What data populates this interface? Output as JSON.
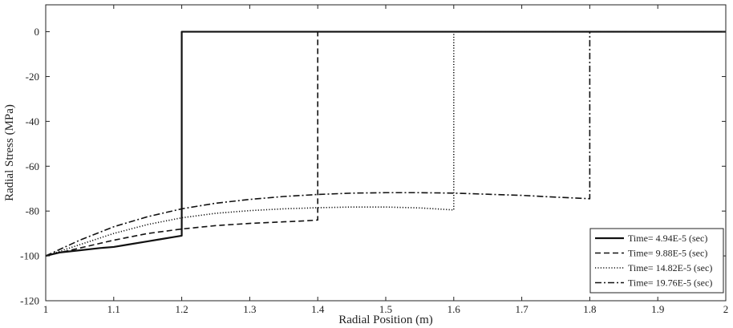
{
  "chart_data": {
    "type": "line",
    "title": "",
    "xlabel": "Radial Position (m)",
    "ylabel": "Radial Stress (MPa)",
    "xlim": [
      1,
      2
    ],
    "ylim": [
      -120,
      12
    ],
    "xticks": [
      1,
      1.1,
      1.2,
      1.3,
      1.4,
      1.5,
      1.6,
      1.7,
      1.8,
      1.9,
      2
    ],
    "xtick_labels": [
      "1",
      "1.1",
      "1.2",
      "1.3",
      "1.4",
      "1.5",
      "1.6",
      "1.7",
      "1.8",
      "1.9",
      "2"
    ],
    "yticks": [
      0,
      -20,
      -40,
      -60,
      -80,
      -100,
      -120
    ],
    "ytick_labels": [
      "0",
      "-20",
      "-40",
      "-60",
      "-80",
      "-100",
      "-120"
    ],
    "grid": false,
    "legend_position": "bottom-right",
    "series": [
      {
        "name": "Time= 4.94E-5 (sec)",
        "line_style": "solid",
        "x": [
          1.0,
          1.02,
          1.05,
          1.08,
          1.1,
          1.12,
          1.15,
          1.17,
          1.19,
          1.2,
          1.2,
          1.21,
          1.3,
          1.4,
          1.5,
          1.6,
          1.7,
          1.8,
          1.9,
          2.0
        ],
        "y": [
          -100,
          -98.5,
          -97.5,
          -96.5,
          -96,
          -95,
          -93.5,
          -92.5,
          -91.5,
          -91,
          0,
          0,
          0,
          0,
          0,
          0,
          0,
          0,
          0,
          0
        ]
      },
      {
        "name": "Time= 9.88E-5 (sec)",
        "line_style": "dashed",
        "x": [
          1.0,
          1.05,
          1.1,
          1.15,
          1.2,
          1.25,
          1.3,
          1.35,
          1.38,
          1.4,
          1.4,
          1.41,
          1.5,
          1.6,
          1.7,
          1.8,
          1.9,
          2.0
        ],
        "y": [
          -100,
          -96.5,
          -93,
          -90,
          -88,
          -86.5,
          -85.5,
          -84.8,
          -84.4,
          -84,
          0,
          0,
          0,
          0,
          0,
          0,
          0,
          0
        ]
      },
      {
        "name": "Time= 14.82E-5 (sec)",
        "line_style": "dotted",
        "x": [
          1.0,
          1.05,
          1.1,
          1.15,
          1.2,
          1.25,
          1.3,
          1.35,
          1.4,
          1.45,
          1.5,
          1.55,
          1.6,
          1.6,
          1.61,
          1.7,
          1.8,
          1.9,
          2.0
        ],
        "y": [
          -100,
          -95,
          -90,
          -86,
          -83,
          -81,
          -79.8,
          -79,
          -78.5,
          -78.2,
          -78.2,
          -78.6,
          -79.5,
          0,
          0,
          0,
          0,
          0,
          0
        ]
      },
      {
        "name": "Time= 19.76E-5 (sec)",
        "line_style": "dashdot",
        "x": [
          1.0,
          1.05,
          1.1,
          1.15,
          1.2,
          1.25,
          1.3,
          1.35,
          1.4,
          1.45,
          1.5,
          1.55,
          1.6,
          1.65,
          1.7,
          1.75,
          1.8,
          1.8,
          1.81,
          1.9,
          2.0
        ],
        "y": [
          -100,
          -93,
          -87,
          -82.5,
          -79,
          -76.5,
          -74.8,
          -73.5,
          -72.6,
          -72,
          -71.8,
          -71.8,
          -72,
          -72.5,
          -73,
          -73.8,
          -74.5,
          0,
          0,
          0,
          0
        ]
      }
    ],
    "annotations": []
  }
}
